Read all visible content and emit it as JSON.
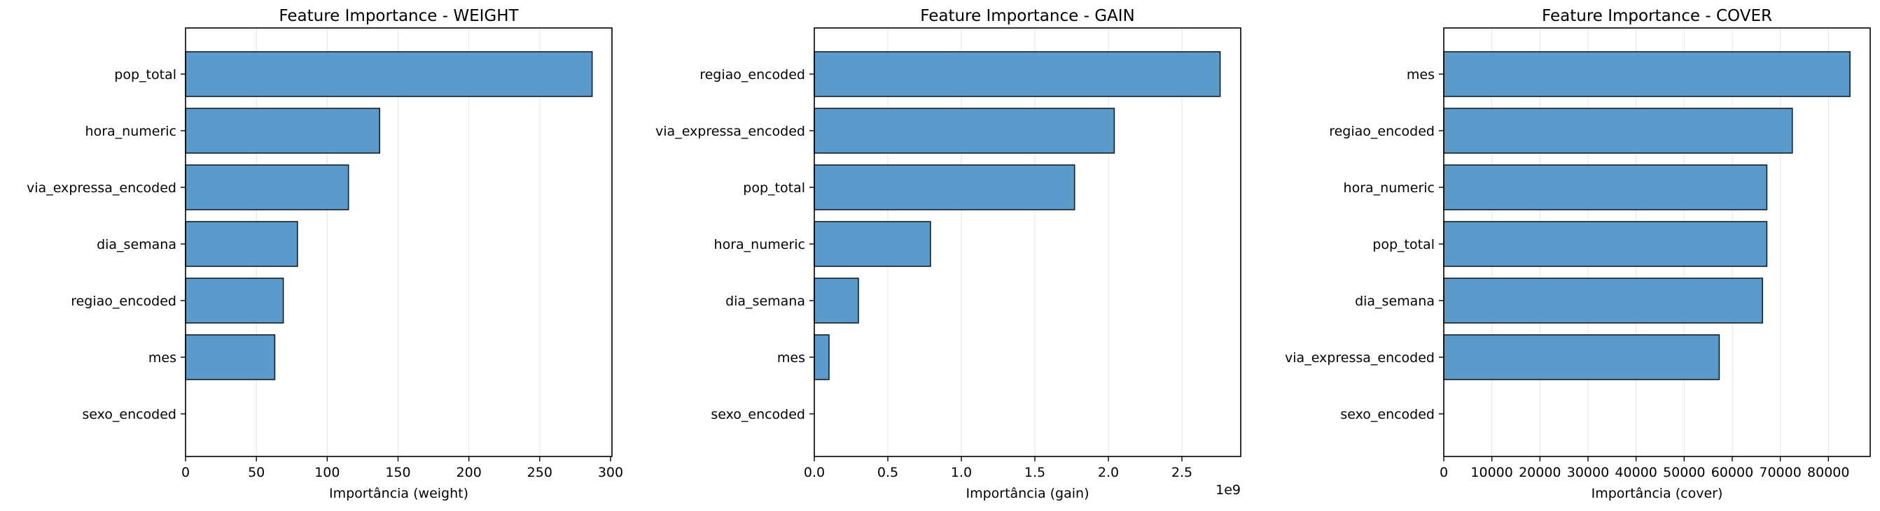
{
  "chart_data": [
    {
      "type": "bar",
      "orientation": "horizontal",
      "title": "Feature Importance - WEIGHT",
      "xlabel": "Importância (weight)",
      "ylabel": "",
      "categories": [
        "pop_total",
        "hora_numeric",
        "via_expressa_encoded",
        "dia_semana",
        "regiao_encoded",
        "mes",
        "sexo_encoded"
      ],
      "values": [
        287,
        137,
        115,
        79,
        69,
        63,
        0
      ],
      "xlim": [
        0,
        301
      ],
      "xticks": [
        0,
        50,
        100,
        150,
        200,
        250,
        300
      ],
      "xtick_labels": [
        "0",
        "50",
        "100",
        "150",
        "200",
        "250",
        "300"
      ],
      "offset_label": "",
      "grid": "x",
      "bar_color": "#5b9bcc"
    },
    {
      "type": "bar",
      "orientation": "horizontal",
      "title": "Feature Importance - GAIN",
      "xlabel": "Importância (gain)",
      "ylabel": "",
      "categories": [
        "regiao_encoded",
        "via_expressa_encoded",
        "pop_total",
        "hora_numeric",
        "dia_semana",
        "mes",
        "sexo_encoded"
      ],
      "values": [
        2.76,
        2.04,
        1.77,
        0.79,
        0.3,
        0.1,
        0
      ],
      "xlim": [
        0,
        2.9
      ],
      "xticks": [
        0,
        0.5,
        1.0,
        1.5,
        2.0,
        2.5
      ],
      "xtick_labels": [
        "0.0",
        "0.5",
        "1.0",
        "1.5",
        "2.0",
        "2.5"
      ],
      "offset_label": "1e9",
      "grid": "x",
      "bar_color": "#5b9bcc"
    },
    {
      "type": "bar",
      "orientation": "horizontal",
      "title": "Feature Importance - COVER",
      "xlabel": "Importância (cover)",
      "ylabel": "",
      "categories": [
        "mes",
        "regiao_encoded",
        "hora_numeric",
        "pop_total",
        "dia_semana",
        "via_expressa_encoded",
        "sexo_encoded"
      ],
      "values": [
        84500,
        72500,
        67200,
        67200,
        66300,
        57300,
        0
      ],
      "xlim": [
        0,
        88700
      ],
      "xticks": [
        0,
        10000,
        20000,
        30000,
        40000,
        50000,
        60000,
        70000,
        80000
      ],
      "xtick_labels": [
        "0",
        "10000",
        "20000",
        "30000",
        "40000",
        "50000",
        "60000",
        "70000",
        "80000"
      ],
      "offset_label": "",
      "grid": "x",
      "bar_color": "#5b9bcc"
    }
  ]
}
